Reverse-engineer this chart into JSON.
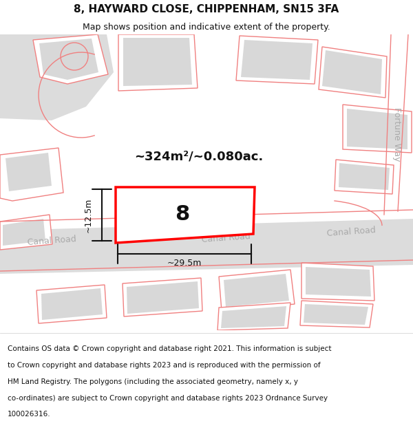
{
  "title": "8, HAYWARD CLOSE, CHIPPENHAM, SN15 3FA",
  "subtitle": "Map shows position and indicative extent of the property.",
  "footer_lines": [
    "Contains OS data © Crown copyright and database right 2021. This information is subject",
    "to Crown copyright and database rights 2023 and is reproduced with the permission of",
    "HM Land Registry. The polygons (including the associated geometry, namely x, y",
    "co-ordinates) are subject to Crown copyright and database rights 2023 Ordnance Survey",
    "100026316."
  ],
  "map_background": "#ffffff",
  "footer_background": "#ffffff",
  "plot_number": "8",
  "area_label": "~324m²/~0.080ac.",
  "dim_width": "~29.5m",
  "dim_height": "~12.5m",
  "road_label_left": "Canal Road",
  "road_label_right": "Canal Road",
  "road_label_center": "Canal Road",
  "side_label": "Fortune Way",
  "building_fill": "#d8d8d8",
  "pink_line_color": "#f08080",
  "title_fontsize": 11,
  "subtitle_fontsize": 9,
  "footer_fontsize": 7.5
}
